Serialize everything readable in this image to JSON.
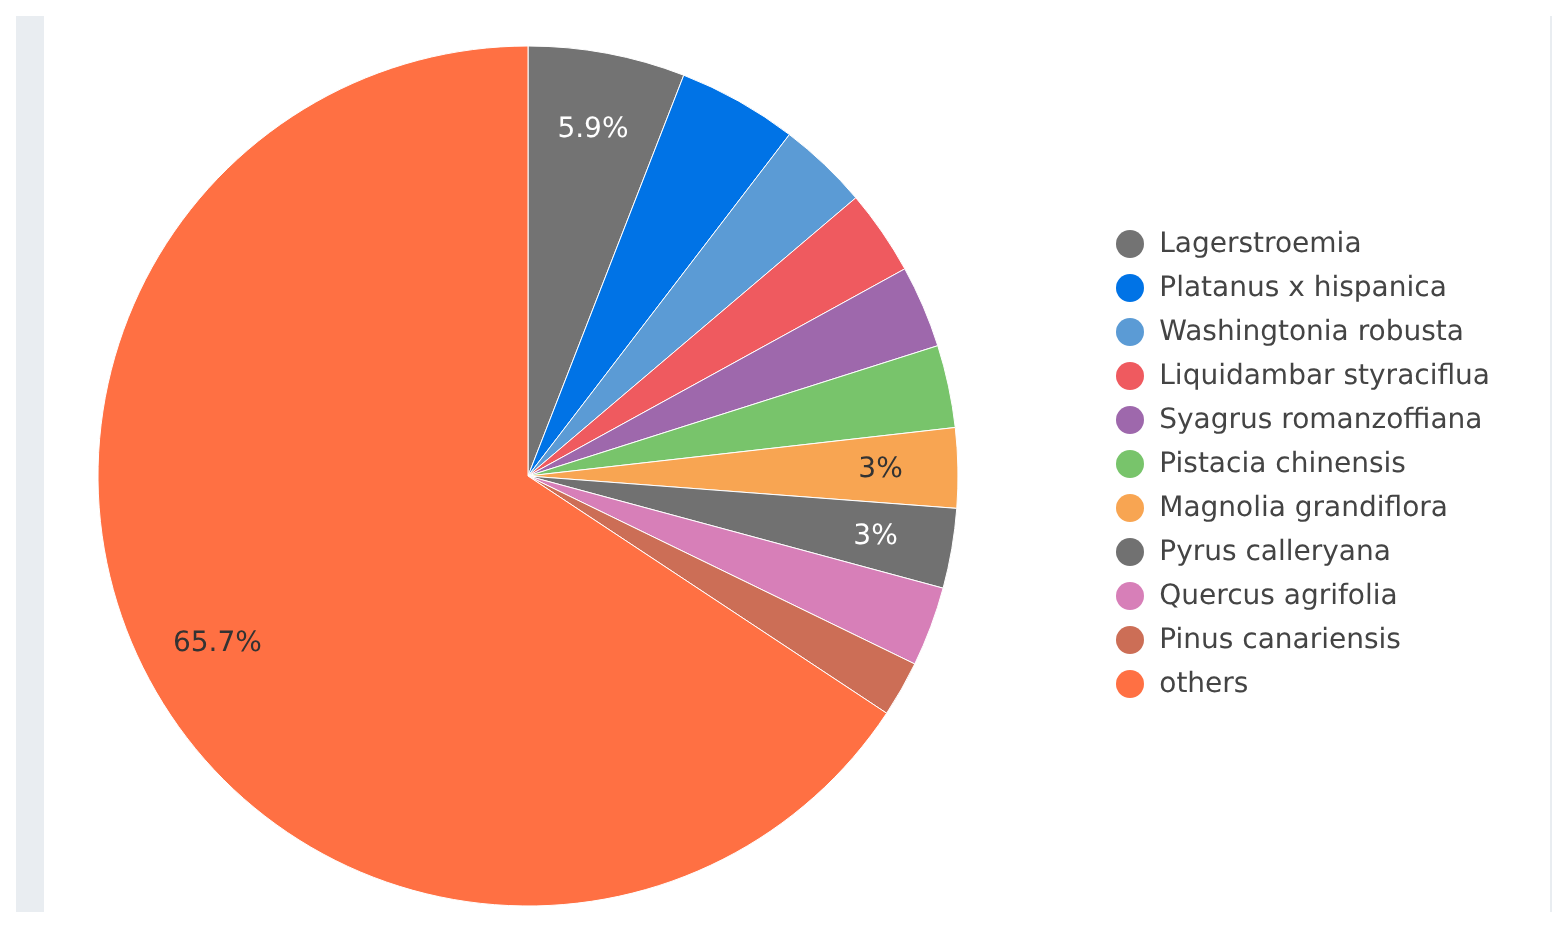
{
  "chart_data": {
    "type": "pie",
    "categories": [
      "Lagerstroemia",
      "Platanus x hispanica",
      "Washingtonia robusta",
      "Liquidambar styraciflua",
      "Syagrus romanzoffiana",
      "Pistacia chinensis",
      "Magnolia grandiflora",
      "Pyrus calleryana",
      "Quercus agrifolia",
      "Pinus canariensis",
      "others"
    ],
    "values": [
      5.9,
      4.5,
      3.4,
      3.2,
      3.1,
      3.1,
      3,
      3,
      3,
      2.1,
      65.7
    ],
    "colors": [
      "#737373",
      "#0073e6",
      "#5b9bd5",
      "#ef5a5f",
      "#9e68ac",
      "#78c46b",
      "#f8a552",
      "#717171",
      "#d77fb8",
      "#cc6e56",
      "#ff7043"
    ],
    "value_labels": [
      "5.9%",
      null,
      null,
      null,
      null,
      null,
      "3%",
      "3%",
      null,
      null,
      "65.7%"
    ],
    "legend": "right"
  }
}
